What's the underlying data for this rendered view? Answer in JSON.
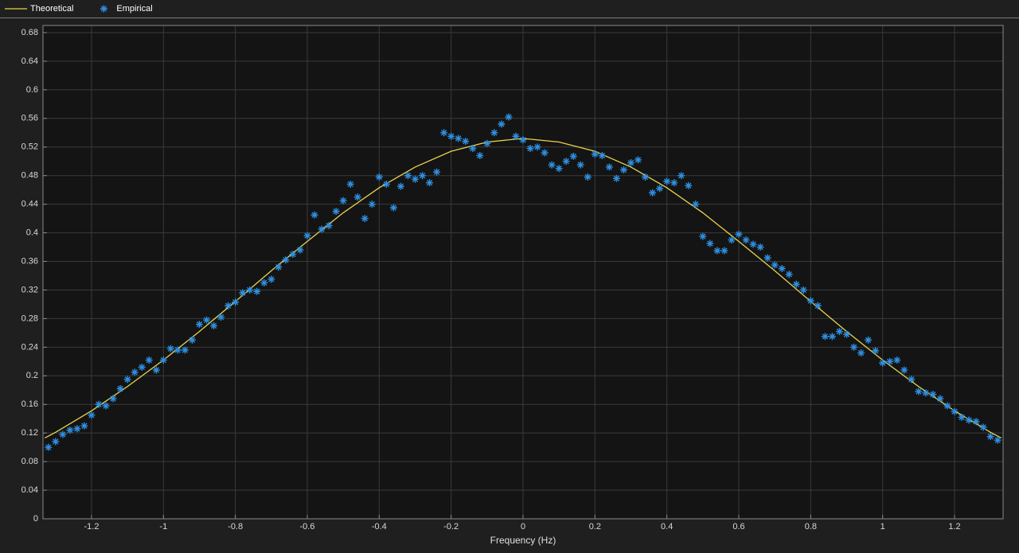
{
  "chart_data": {
    "type": "line-scatter",
    "x_label": "Frequency (Hz)",
    "xlim": [
      -1.335,
      1.335
    ],
    "ylim": [
      0,
      0.69
    ],
    "xticks": [
      -1.2,
      -1,
      -0.8,
      -0.6,
      -0.4,
      -0.2,
      0,
      0.2,
      0.4,
      0.6,
      0.8,
      1,
      1.2
    ],
    "yticks": [
      0,
      0.04,
      0.08,
      0.12,
      0.16,
      0.2,
      0.24,
      0.28,
      0.32,
      0.36,
      0.4,
      0.44,
      0.48,
      0.52,
      0.56,
      0.6,
      0.64,
      0.68
    ],
    "grid": true,
    "legend": "top",
    "series": [
      {
        "name": "Theoretical",
        "kind": "line",
        "color": "#e8d44d",
        "x": [
          -1.33,
          -1.3,
          -1.2,
          -1.1,
          -1.0,
          -0.9,
          -0.8,
          -0.7,
          -0.6,
          -0.5,
          -0.4,
          -0.3,
          -0.2,
          -0.1,
          0,
          0.1,
          0.2,
          0.3,
          0.4,
          0.5,
          0.6,
          0.7,
          0.8,
          0.9,
          1.0,
          1.1,
          1.2,
          1.3,
          1.33
        ],
        "values": [
          0.113,
          0.121,
          0.151,
          0.185,
          0.222,
          0.262,
          0.304,
          0.347,
          0.388,
          0.428,
          0.463,
          0.492,
          0.514,
          0.527,
          0.532,
          0.527,
          0.514,
          0.492,
          0.463,
          0.428,
          0.388,
          0.347,
          0.304,
          0.262,
          0.222,
          0.185,
          0.151,
          0.121,
          0.113
        ]
      },
      {
        "name": "Empirical",
        "kind": "scatter",
        "color": "#2e8fe0",
        "x": [
          -1.32,
          -1.3,
          -1.28,
          -1.26,
          -1.24,
          -1.22,
          -1.2,
          -1.18,
          -1.16,
          -1.14,
          -1.12,
          -1.1,
          -1.08,
          -1.06,
          -1.04,
          -1.02,
          -1.0,
          -0.98,
          -0.96,
          -0.94,
          -0.92,
          -0.9,
          -0.88,
          -0.86,
          -0.84,
          -0.82,
          -0.8,
          -0.78,
          -0.76,
          -0.74,
          -0.72,
          -0.7,
          -0.68,
          -0.66,
          -0.64,
          -0.62,
          -0.6,
          -0.58,
          -0.56,
          -0.54,
          -0.52,
          -0.5,
          -0.48,
          -0.46,
          -0.44,
          -0.42,
          -0.4,
          -0.38,
          -0.36,
          -0.34,
          -0.32,
          -0.3,
          -0.28,
          -0.26,
          -0.24,
          -0.22,
          -0.2,
          -0.18,
          -0.16,
          -0.14,
          -0.12,
          -0.1,
          -0.08,
          -0.06,
          -0.04,
          -0.02,
          0,
          0.02,
          0.04,
          0.06,
          0.08,
          0.1,
          0.12,
          0.14,
          0.16,
          0.18,
          0.2,
          0.22,
          0.24,
          0.26,
          0.28,
          0.3,
          0.32,
          0.34,
          0.36,
          0.38,
          0.4,
          0.42,
          0.44,
          0.46,
          0.48,
          0.5,
          0.52,
          0.54,
          0.56,
          0.58,
          0.6,
          0.62,
          0.64,
          0.66,
          0.68,
          0.7,
          0.72,
          0.74,
          0.76,
          0.78,
          0.8,
          0.82,
          0.84,
          0.86,
          0.88,
          0.9,
          0.92,
          0.94,
          0.96,
          0.98,
          1.0,
          1.02,
          1.04,
          1.06,
          1.08,
          1.1,
          1.12,
          1.14,
          1.16,
          1.18,
          1.2,
          1.22,
          1.24,
          1.26,
          1.28,
          1.3,
          1.32
        ],
        "values": [
          0.1,
          0.108,
          0.118,
          0.124,
          0.126,
          0.13,
          0.145,
          0.16,
          0.158,
          0.168,
          0.182,
          0.195,
          0.205,
          0.212,
          0.222,
          0.208,
          0.222,
          0.238,
          0.236,
          0.236,
          0.25,
          0.272,
          0.278,
          0.27,
          0.282,
          0.298,
          0.303,
          0.316,
          0.32,
          0.318,
          0.33,
          0.335,
          0.352,
          0.362,
          0.37,
          0.376,
          0.396,
          0.425,
          0.405,
          0.41,
          0.43,
          0.445,
          0.468,
          0.45,
          0.42,
          0.44,
          0.478,
          0.468,
          0.435,
          0.465,
          0.48,
          0.475,
          0.48,
          0.47,
          0.485,
          0.54,
          0.535,
          0.532,
          0.528,
          0.518,
          0.508,
          0.525,
          0.54,
          0.552,
          0.562,
          0.535,
          0.53,
          0.518,
          0.52,
          0.512,
          0.495,
          0.49,
          0.5,
          0.507,
          0.495,
          0.478,
          0.51,
          0.508,
          0.492,
          0.476,
          0.488,
          0.498,
          0.502,
          0.478,
          0.456,
          0.462,
          0.472,
          0.47,
          0.48,
          0.466,
          0.44,
          0.395,
          0.385,
          0.375,
          0.375,
          0.39,
          0.398,
          0.39,
          0.384,
          0.38,
          0.365,
          0.355,
          0.35,
          0.342,
          0.328,
          0.32,
          0.305,
          0.298,
          0.255,
          0.255,
          0.262,
          0.258,
          0.24,
          0.232,
          0.25,
          0.235,
          0.218,
          0.22,
          0.222,
          0.208,
          0.195,
          0.178,
          0.176,
          0.174,
          0.168,
          0.158,
          0.15,
          0.142,
          0.138,
          0.136,
          0.128,
          0.115,
          0.11
        ]
      }
    ]
  }
}
